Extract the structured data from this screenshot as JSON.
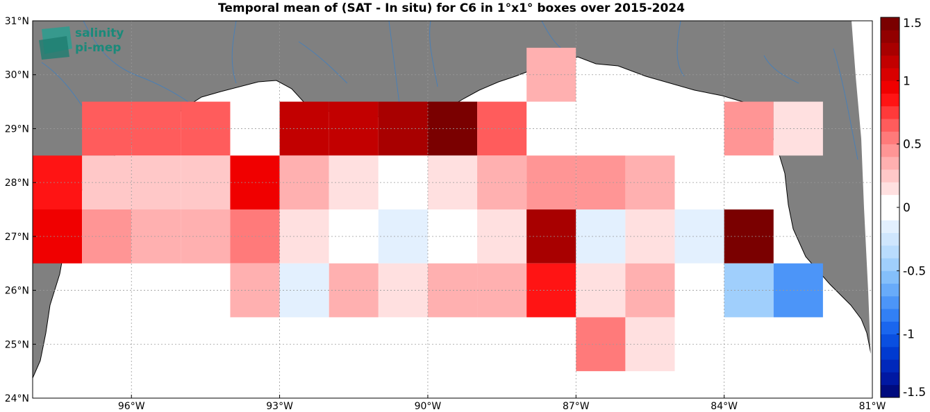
{
  "title": "Temporal mean of (SAT - In situ) for C6 in 1°x1° boxes over 2015-2024",
  "logo": {
    "line1": "salinity",
    "line2": "pi-mep"
  },
  "chart_data": {
    "type": "heatmap",
    "title": "Temporal mean of (SAT - In situ) for C6 in 1°x1° boxes over 2015-2024",
    "xlim": [
      -98,
      -81
    ],
    "ylim": [
      24,
      31
    ],
    "x_ticks": [
      {
        "value": -96,
        "label": "96°W"
      },
      {
        "value": -93,
        "label": "93°W"
      },
      {
        "value": -90,
        "label": "90°W"
      },
      {
        "value": -87,
        "label": "87°W"
      },
      {
        "value": -84,
        "label": "84°W"
      },
      {
        "value": -81,
        "label": "81°W"
      }
    ],
    "y_ticks": [
      {
        "value": 24,
        "label": "24°N"
      },
      {
        "value": 25,
        "label": "25°N"
      },
      {
        "value": 26,
        "label": "26°N"
      },
      {
        "value": 27,
        "label": "27°N"
      },
      {
        "value": 28,
        "label": "28°N"
      },
      {
        "value": 29,
        "label": "29°N"
      },
      {
        "value": 30,
        "label": "30°N"
      },
      {
        "value": 31,
        "label": "31°N"
      }
    ],
    "grid": true,
    "colorbar": {
      "min": -1.5,
      "max": 1.5,
      "steps": 30,
      "ticks": [
        {
          "value": 1.5,
          "label": "1.5"
        },
        {
          "value": 1,
          "label": "1"
        },
        {
          "value": 0.5,
          "label": "0.5"
        },
        {
          "value": 0,
          "label": "0"
        },
        {
          "value": -0.5,
          "label": "-0.5"
        },
        {
          "value": -1,
          "label": "-1"
        },
        {
          "value": -1.5,
          "label": "-1.5"
        }
      ],
      "colors": [
        "#000b7e",
        "#0018a2",
        "#0028bb",
        "#003ad0",
        "#0a4fe0",
        "#1a66ee",
        "#3280f5",
        "#4c95f8",
        "#68abfa",
        "#84bffb",
        "#a0cffc",
        "#b9dcfd",
        "#cfe6fd",
        "#e3f0fe",
        "#ffffff",
        "#ffffff",
        "#ffe0e0",
        "#ffc8c8",
        "#ffb0b0",
        "#ff9595",
        "#ff7a7a",
        "#ff5c5c",
        "#ff3a3a",
        "#ff1414",
        "#f00000",
        "#d80000",
        "#c20000",
        "#a80000",
        "#920000",
        "#7a0000"
      ]
    },
    "cells": [
      {
        "lon": -96.5,
        "lat": 29,
        "value": 0.6
      },
      {
        "lon": -95.5,
        "lat": 29,
        "value": 0.6
      },
      {
        "lon": -94.5,
        "lat": 29,
        "value": 0.6
      },
      {
        "lon": -92.5,
        "lat": 29,
        "value": 1.1
      },
      {
        "lon": -91.5,
        "lat": 29,
        "value": 1.1
      },
      {
        "lon": -90.5,
        "lat": 29,
        "value": 1.3
      },
      {
        "lon": -89.5,
        "lat": 29,
        "value": 1.45
      },
      {
        "lon": -88.5,
        "lat": 29,
        "value": 0.6
      },
      {
        "lon": -87.5,
        "lat": 30,
        "value": 0.3
      },
      {
        "lon": -83.5,
        "lat": 29,
        "value": 0.45
      },
      {
        "lon": -82.5,
        "lat": 29,
        "value": 0.15
      },
      {
        "lon": -97.5,
        "lat": 28,
        "value": 0.8
      },
      {
        "lon": -96.5,
        "lat": 28,
        "value": 0.2
      },
      {
        "lon": -95.5,
        "lat": 28,
        "value": 0.2
      },
      {
        "lon": -94.5,
        "lat": 28,
        "value": 0.2
      },
      {
        "lon": -93.5,
        "lat": 28,
        "value": 0.95
      },
      {
        "lon": -92.5,
        "lat": 28,
        "value": 0.3
      },
      {
        "lon": -91.5,
        "lat": 28,
        "value": 0.15
      },
      {
        "lon": -90.5,
        "lat": 28,
        "value": 0.0
      },
      {
        "lon": -89.5,
        "lat": 28,
        "value": 0.15
      },
      {
        "lon": -88.5,
        "lat": 28,
        "value": 0.35
      },
      {
        "lon": -87.5,
        "lat": 28,
        "value": 0.45
      },
      {
        "lon": -86.5,
        "lat": 28,
        "value": 0.45
      },
      {
        "lon": -85.5,
        "lat": 28,
        "value": 0.35
      },
      {
        "lon": -84.5,
        "lat": 28,
        "value": 0.0
      },
      {
        "lon": -83.5,
        "lat": 28,
        "value": 0.0
      },
      {
        "lon": -97.5,
        "lat": 27,
        "value": 0.95
      },
      {
        "lon": -96.5,
        "lat": 27,
        "value": 0.45
      },
      {
        "lon": -95.5,
        "lat": 27,
        "value": 0.35
      },
      {
        "lon": -94.5,
        "lat": 27,
        "value": 0.35
      },
      {
        "lon": -93.5,
        "lat": 27,
        "value": 0.55
      },
      {
        "lon": -92.5,
        "lat": 27,
        "value": 0.15
      },
      {
        "lon": -91.5,
        "lat": 27,
        "value": 0.0
      },
      {
        "lon": -90.5,
        "lat": 27,
        "value": -0.1
      },
      {
        "lon": -89.5,
        "lat": 27,
        "value": 0.0
      },
      {
        "lon": -88.5,
        "lat": 27,
        "value": 0.15
      },
      {
        "lon": -87.5,
        "lat": 27,
        "value": 1.25
      },
      {
        "lon": -86.5,
        "lat": 27,
        "value": -0.1
      },
      {
        "lon": -85.5,
        "lat": 27,
        "value": 0.15
      },
      {
        "lon": -84.5,
        "lat": 27,
        "value": -0.1
      },
      {
        "lon": -83.5,
        "lat": 27,
        "value": 1.4
      },
      {
        "lon": -93.5,
        "lat": 26,
        "value": 0.3
      },
      {
        "lon": -92.5,
        "lat": 26,
        "value": -0.1
      },
      {
        "lon": -91.5,
        "lat": 26,
        "value": 0.3
      },
      {
        "lon": -90.5,
        "lat": 26,
        "value": 0.15
      },
      {
        "lon": -89.5,
        "lat": 26,
        "value": 0.35
      },
      {
        "lon": -88.5,
        "lat": 26,
        "value": 0.35
      },
      {
        "lon": -87.5,
        "lat": 26,
        "value": 0.85
      },
      {
        "lon": -86.5,
        "lat": 26,
        "value": 0.15
      },
      {
        "lon": -85.5,
        "lat": 26,
        "value": 0.35
      },
      {
        "lon": -84.5,
        "lat": 26,
        "value": 0.0
      },
      {
        "lon": -83.5,
        "lat": 26,
        "value": -0.45
      },
      {
        "lon": -82.5,
        "lat": 26,
        "value": -0.75
      },
      {
        "lon": -86.5,
        "lat": 25,
        "value": 0.55
      },
      {
        "lon": -85.5,
        "lat": 25,
        "value": 0.15
      }
    ]
  }
}
